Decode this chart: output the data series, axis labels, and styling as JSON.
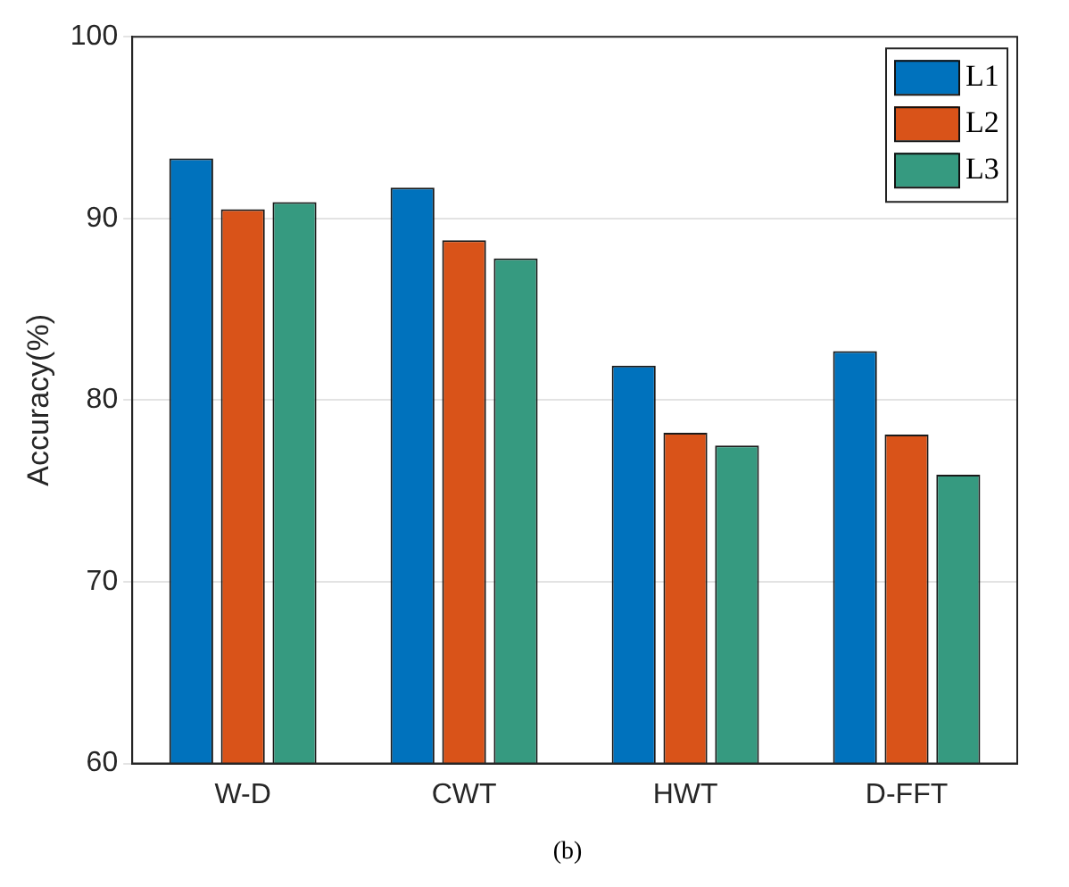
{
  "chart_data": {
    "type": "bar",
    "ylabel": "Accuracy(%)",
    "categories": [
      "W-D",
      "CWT",
      "HWT",
      "D-FFT"
    ],
    "series": [
      {
        "name": "L1",
        "color": "#0072bd",
        "values": [
          93.3,
          91.7,
          81.9,
          82.7
        ]
      },
      {
        "name": "L2",
        "color": "#d95319",
        "values": [
          90.5,
          88.8,
          78.2,
          78.1
        ]
      },
      {
        "name": "L3",
        "color": "#369a80",
        "values": [
          90.9,
          87.8,
          77.5,
          75.9
        ]
      }
    ],
    "ylim": [
      60,
      100
    ],
    "yticks": [
      60,
      70,
      80,
      90,
      100
    ],
    "grid": "y",
    "legend": "top right",
    "annotations": [
      "(b)"
    ]
  }
}
